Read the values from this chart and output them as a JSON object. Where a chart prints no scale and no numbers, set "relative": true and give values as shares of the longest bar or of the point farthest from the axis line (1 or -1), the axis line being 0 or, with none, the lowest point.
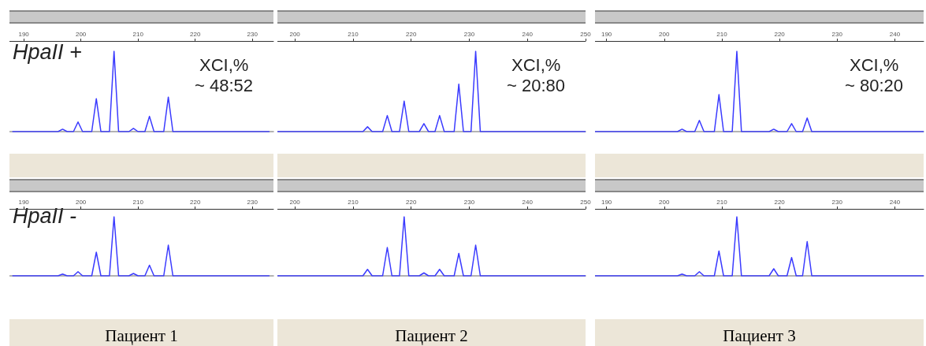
{
  "chart_data": [
    {
      "type": "line",
      "relative": true,
      "ylabel": "HpaII +",
      "annotations": [
        "XCI,%",
        "~ 48:52"
      ],
      "color": "#3a3aff",
      "marker": "none",
      "tick_labels": "x",
      "xlim": [
        187.5,
        233.7
      ],
      "xticks": [
        190,
        200,
        210,
        220,
        230
      ],
      "x": [
        188,
        196,
        196.8,
        197.6,
        198.7,
        199.5,
        200.3,
        201.9,
        202.7,
        203.5,
        205,
        205.8,
        206.6,
        208.4,
        209.2,
        210,
        211.2,
        212,
        212.8,
        214.5,
        215.3,
        216.1,
        233
      ],
      "values": [
        0,
        0,
        0.03,
        0,
        0,
        0.12,
        0,
        0,
        0.41,
        0,
        0,
        1,
        0,
        0,
        0.04,
        0,
        0,
        0.19,
        0,
        0,
        0.43,
        0,
        0
      ]
    },
    {
      "type": "line",
      "relative": true,
      "annotations": [
        "XCI,%",
        "~ 20:80"
      ],
      "color": "#3a3aff",
      "marker": "none",
      "tick_labels": "x",
      "xlim": [
        197,
        250
      ],
      "xticks": [
        200,
        210,
        220,
        230,
        240,
        250
      ],
      "x": [
        197,
        211.7,
        212.5,
        213.3,
        215.1,
        215.9,
        216.7,
        218,
        218.8,
        219.6,
        221.4,
        222.2,
        223,
        224.1,
        224.9,
        225.7,
        227.4,
        228.2,
        229,
        230.3,
        231.1,
        231.9,
        250
      ],
      "values": [
        0,
        0,
        0.06,
        0,
        0,
        0.2,
        0,
        0,
        0.38,
        0,
        0,
        0.1,
        0,
        0,
        0.2,
        0,
        0,
        0.59,
        0,
        0,
        1,
        0,
        0
      ]
    },
    {
      "type": "line",
      "relative": true,
      "annotations": [
        "XCI,%",
        "~ 80:20"
      ],
      "color": "#3a3aff",
      "marker": "none",
      "tick_labels": "x",
      "xlim": [
        188,
        245
      ],
      "xticks": [
        190,
        200,
        210,
        220,
        230,
        240
      ],
      "x": [
        188,
        202.3,
        203.1,
        203.9,
        205.3,
        206.1,
        206.9,
        208.7,
        209.5,
        210.3,
        211.8,
        212.6,
        213.4,
        218.2,
        219,
        219.8,
        221.3,
        222.1,
        222.9,
        224,
        224.8,
        225.6,
        245
      ],
      "values": [
        0,
        0,
        0.03,
        0,
        0,
        0.14,
        0,
        0,
        0.46,
        0,
        0,
        1,
        0,
        0,
        0.03,
        0,
        0,
        0.1,
        0,
        0,
        0.17,
        0,
        0
      ]
    },
    {
      "type": "line",
      "relative": true,
      "ylabel": "HpaII -",
      "xlabel": "Пациент 1",
      "color": "#3a3aff",
      "marker": "none",
      "tick_labels": "x",
      "xlim": [
        187.5,
        233.7
      ],
      "xticks": [
        190,
        200,
        210,
        220,
        230
      ],
      "x": [
        188,
        196,
        196.8,
        197.6,
        198.7,
        199.5,
        200.3,
        201.9,
        202.7,
        203.5,
        205,
        205.8,
        206.6,
        208.4,
        209.2,
        210,
        211.2,
        212,
        212.8,
        214.5,
        215.3,
        216.1,
        233
      ],
      "values": [
        0,
        0,
        0.03,
        0,
        0,
        0.07,
        0,
        0,
        0.4,
        0,
        0,
        1,
        0,
        0,
        0.04,
        0,
        0,
        0.18,
        0,
        0,
        0.52,
        0,
        0
      ]
    },
    {
      "type": "line",
      "relative": true,
      "xlabel": "Пациент 2",
      "color": "#3a3aff",
      "marker": "none",
      "tick_labels": "x",
      "xlim": [
        197,
        250
      ],
      "xticks": [
        200,
        210,
        220,
        230,
        240,
        250
      ],
      "x": [
        197,
        211.7,
        212.5,
        213.3,
        215.1,
        215.9,
        216.7,
        218,
        218.8,
        219.6,
        221.4,
        222.2,
        223,
        224.1,
        224.9,
        225.7,
        227.4,
        228.2,
        229,
        230.3,
        231.1,
        231.9,
        250
      ],
      "values": [
        0,
        0,
        0.11,
        0,
        0,
        0.48,
        0,
        0,
        1,
        0,
        0,
        0.05,
        0,
        0,
        0.11,
        0,
        0,
        0.38,
        0,
        0,
        0.52,
        0,
        0
      ]
    },
    {
      "type": "line",
      "relative": true,
      "xlabel": "Пациент 3",
      "color": "#3a3aff",
      "marker": "none",
      "tick_labels": "x",
      "xlim": [
        188,
        245
      ],
      "xticks": [
        190,
        200,
        210,
        220,
        230,
        240
      ],
      "x": [
        188,
        202.3,
        203.1,
        203.9,
        205.3,
        206.1,
        206.9,
        208.7,
        209.5,
        210.3,
        211.8,
        212.6,
        213.4,
        218.2,
        219,
        219.8,
        221.3,
        222.1,
        222.9,
        224,
        224.8,
        225.6,
        245
      ],
      "values": [
        0,
        0,
        0.03,
        0,
        0,
        0.07,
        0,
        0,
        0.42,
        0,
        0,
        1,
        0,
        0,
        0.12,
        0,
        0,
        0.31,
        0,
        0,
        0.58,
        0,
        0
      ]
    }
  ]
}
